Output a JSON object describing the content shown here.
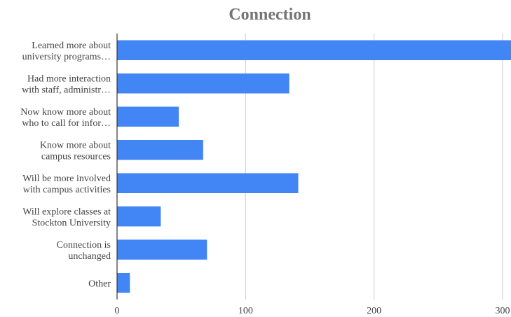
{
  "chart_data": {
    "type": "bar",
    "orientation": "horizontal",
    "title": "Connection",
    "xlabel": "",
    "ylabel": "",
    "categories": [
      [
        "Learned more about",
        "university programs…"
      ],
      [
        "Had more interaction",
        "with staff, administr…"
      ],
      [
        "Now know more about",
        "who to call for infor…"
      ],
      [
        "Know more about",
        "campus resources"
      ],
      [
        "Will be more involved",
        "with campus activities"
      ],
      [
        "Will explore classes at",
        "Stockton University"
      ],
      [
        "Connection is",
        "unchanged"
      ],
      [
        "Other"
      ]
    ],
    "values": [
      310,
      134,
      48,
      67,
      141,
      34,
      70,
      10
    ],
    "xlim": [
      0,
      300
    ],
    "ticks": [
      "0",
      "100",
      "200",
      "300"
    ],
    "tick_values": [
      0,
      100,
      200,
      300
    ],
    "grid": true,
    "bar_color": "#4285f4",
    "grid_color": "#cccccc",
    "axis_color": "#333333"
  }
}
